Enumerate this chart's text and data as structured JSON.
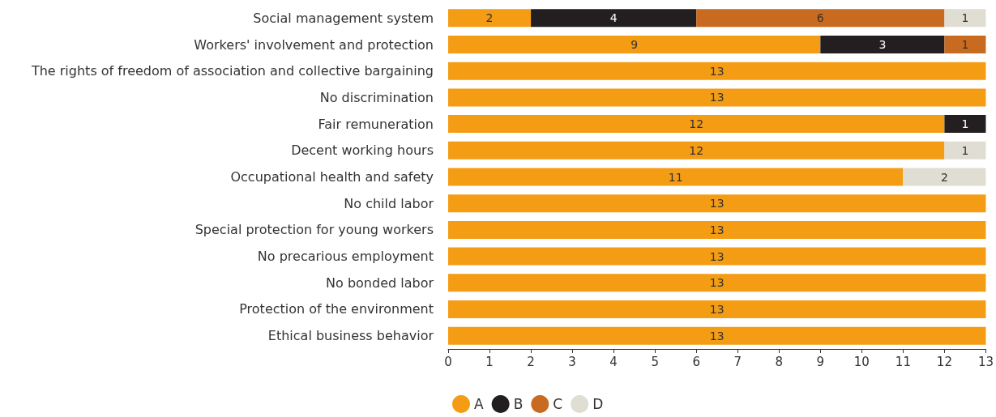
{
  "chart_data": {
    "type": "bar",
    "orientation": "horizontal",
    "stacked": true,
    "data_labels": true,
    "legend": "bottom",
    "grid": false,
    "categories": [
      "Social management system",
      "Workers' involvement and protection",
      "The rights of freedom of association and collective bargaining",
      "No discrimination",
      "Fair remuneration",
      "Decent working hours",
      "Occupational health and safety",
      "No child labor",
      "Special protection for young workers",
      "No precarious employment",
      "No bonded labor",
      "Protection of the environment",
      "Ethical business behavior"
    ],
    "series": [
      {
        "name": "A",
        "color": "#f49c14",
        "values": [
          2,
          9,
          13,
          13,
          12,
          12,
          11,
          13,
          13,
          13,
          13,
          13,
          13
        ]
      },
      {
        "name": "B",
        "color": "#231f20",
        "values": [
          4,
          3,
          null,
          null,
          1,
          null,
          null,
          null,
          null,
          null,
          null,
          null,
          null
        ]
      },
      {
        "name": "C",
        "color": "#c86a1f",
        "values": [
          6,
          1,
          null,
          null,
          null,
          null,
          null,
          null,
          null,
          null,
          null,
          null,
          null
        ]
      },
      {
        "name": "D",
        "color": "#e0ddd3",
        "values": [
          1,
          null,
          null,
          null,
          null,
          1,
          2,
          null,
          null,
          null,
          null,
          null,
          null
        ]
      }
    ],
    "xlim": [
      0,
      13
    ],
    "xticks": [
      0,
      1,
      2,
      3,
      4,
      5,
      6,
      7,
      8,
      9,
      10,
      11,
      12,
      13
    ]
  }
}
